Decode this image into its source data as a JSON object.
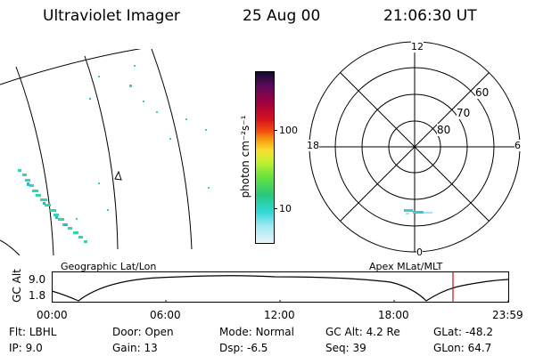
{
  "header": {
    "title": "Ultraviolet Imager",
    "date": "25 Aug 00",
    "time": "21:06:30 UT"
  },
  "colorbar": {
    "unit_label": "photon cm⁻²s⁻¹",
    "ticks": [
      "100",
      "10"
    ],
    "colors": [
      "#140a30",
      "#5a0a5a",
      "#a00040",
      "#d8141c",
      "#f04810",
      "#f8a010",
      "#f8e030",
      "#c8f030",
      "#64e040",
      "#28c880",
      "#30d8d8",
      "#a0e8f0",
      "#e8f4f8"
    ]
  },
  "polar": {
    "clock_labels": {
      "top": "12",
      "left": "18",
      "right": "6",
      "bottom": "0"
    },
    "lat_labels": [
      "60",
      "70",
      "80"
    ]
  },
  "map_labels": {
    "left": "Geographic Lat/Lon",
    "right": "Apex MLat/MLT"
  },
  "altitude_plot": {
    "axis_label": "GC Alt",
    "y_ticks": [
      "9.0",
      "1.8"
    ],
    "x_ticks": [
      "00:00",
      "06:00",
      "12:00",
      "18:00",
      "23:59"
    ],
    "marker_color": "#d01010"
  },
  "info": {
    "filter_label": "Flt:",
    "filter_value": "LBHL",
    "door_label": "Door:",
    "door_value": "Open",
    "mode_label": "Mode:",
    "mode_value": "Normal",
    "gcalt_label": "GC Alt:",
    "gcalt_value": "4.2 Re",
    "glat_label": "GLat:",
    "glat_value": "-48.2",
    "ip_label": "IP:",
    "ip_value": "9.0",
    "gain_label": "Gain:",
    "gain_value": "13",
    "dsp_label": "Dsp:",
    "dsp_value": "-6.5",
    "seq_label": "Seq:",
    "seq_value": "39",
    "glon_label": "GLon:",
    "glon_value": "64.7"
  }
}
